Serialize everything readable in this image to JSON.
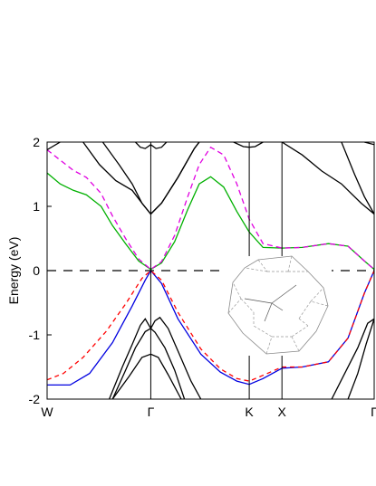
{
  "chart_data": {
    "type": "line",
    "title": "",
    "ylabel": "Energy (eV)",
    "xlabel": "",
    "ylim": [
      -2,
      2
    ],
    "xlim": [
      0,
      1
    ],
    "grid": false,
    "legend": "none",
    "y_ticks": [
      {
        "value": 2,
        "label": "2"
      },
      {
        "value": 1,
        "label": "1"
      },
      {
        "value": 0,
        "label": "0"
      },
      {
        "value": -1,
        "label": "-1"
      },
      {
        "value": -2,
        "label": "-2"
      }
    ],
    "k_points": [
      {
        "label": "W",
        "x": 0.0
      },
      {
        "label": "Γ",
        "x": 0.317
      },
      {
        "label": "K",
        "x": 0.618
      },
      {
        "label": "X",
        "x": 0.718
      },
      {
        "label": "Γ",
        "x": 1.0
      }
    ],
    "fermi_level": 0,
    "series": [
      {
        "color": "#00b000",
        "dash": "none",
        "points": [
          [
            0.0,
            1.52
          ],
          [
            0.04,
            1.35
          ],
          [
            0.08,
            1.25
          ],
          [
            0.12,
            1.18
          ],
          [
            0.165,
            1.0
          ],
          [
            0.2,
            0.7
          ],
          [
            0.24,
            0.42
          ],
          [
            0.28,
            0.15
          ],
          [
            0.317,
            0.02
          ],
          [
            0.35,
            0.12
          ],
          [
            0.39,
            0.45
          ],
          [
            0.43,
            0.95
          ],
          [
            0.465,
            1.35
          ],
          [
            0.5,
            1.46
          ],
          [
            0.54,
            1.3
          ],
          [
            0.58,
            0.92
          ],
          [
            0.618,
            0.6
          ],
          [
            0.66,
            0.36
          ],
          [
            0.718,
            0.35
          ],
          [
            0.78,
            0.36
          ],
          [
            0.86,
            0.42
          ],
          [
            0.92,
            0.38
          ],
          [
            0.97,
            0.15
          ],
          [
            1.0,
            0.02
          ]
        ]
      },
      {
        "color": "#e000e0",
        "dash": "6,4",
        "points": [
          [
            0.0,
            1.88
          ],
          [
            0.04,
            1.72
          ],
          [
            0.08,
            1.56
          ],
          [
            0.12,
            1.45
          ],
          [
            0.165,
            1.2
          ],
          [
            0.2,
            0.85
          ],
          [
            0.24,
            0.5
          ],
          [
            0.28,
            0.18
          ],
          [
            0.317,
            0.02
          ],
          [
            0.35,
            0.14
          ],
          [
            0.39,
            0.55
          ],
          [
            0.43,
            1.15
          ],
          [
            0.465,
            1.65
          ],
          [
            0.5,
            1.92
          ],
          [
            0.54,
            1.8
          ],
          [
            0.58,
            1.35
          ],
          [
            0.618,
            0.8
          ],
          [
            0.66,
            0.42
          ],
          [
            0.718,
            0.35
          ],
          [
            0.78,
            0.36
          ],
          [
            0.86,
            0.42
          ],
          [
            0.92,
            0.38
          ],
          [
            0.97,
            0.15
          ],
          [
            1.0,
            0.02
          ]
        ]
      },
      {
        "color": "#0000e0",
        "dash": "none",
        "points": [
          [
            0.0,
            -1.78
          ],
          [
            0.07,
            -1.78
          ],
          [
            0.13,
            -1.6
          ],
          [
            0.2,
            -1.12
          ],
          [
            0.26,
            -0.55
          ],
          [
            0.3,
            -0.15
          ],
          [
            0.317,
            0.0
          ],
          [
            0.35,
            -0.2
          ],
          [
            0.4,
            -0.75
          ],
          [
            0.47,
            -1.3
          ],
          [
            0.53,
            -1.58
          ],
          [
            0.58,
            -1.72
          ],
          [
            0.618,
            -1.77
          ],
          [
            0.66,
            -1.68
          ],
          [
            0.718,
            -1.52
          ],
          [
            0.78,
            -1.5
          ],
          [
            0.86,
            -1.42
          ],
          [
            0.92,
            -1.05
          ],
          [
            0.97,
            -0.35
          ],
          [
            1.0,
            0.0
          ]
        ]
      },
      {
        "color": "#ff0000",
        "dash": "5,4",
        "points": [
          [
            0.0,
            -1.7
          ],
          [
            0.05,
            -1.6
          ],
          [
            0.11,
            -1.35
          ],
          [
            0.18,
            -0.95
          ],
          [
            0.24,
            -0.52
          ],
          [
            0.29,
            -0.12
          ],
          [
            0.317,
            0.0
          ],
          [
            0.35,
            -0.15
          ],
          [
            0.4,
            -0.65
          ],
          [
            0.47,
            -1.22
          ],
          [
            0.53,
            -1.53
          ],
          [
            0.58,
            -1.68
          ],
          [
            0.618,
            -1.72
          ],
          [
            0.66,
            -1.63
          ],
          [
            0.718,
            -1.5
          ],
          [
            0.78,
            -1.5
          ],
          [
            0.86,
            -1.42
          ],
          [
            0.92,
            -1.05
          ],
          [
            0.97,
            -0.35
          ],
          [
            1.0,
            0.0
          ]
        ]
      },
      {
        "color": "#000000",
        "dash": "none",
        "points": [
          [
            0.0,
            1.88
          ],
          [
            0.04,
            2.0
          ]
        ]
      },
      {
        "color": "#000000",
        "dash": "none",
        "points": [
          [
            0.11,
            2.0
          ],
          [
            0.16,
            1.65
          ],
          [
            0.21,
            1.4
          ],
          [
            0.26,
            1.25
          ],
          [
            0.29,
            1.05
          ],
          [
            0.317,
            0.88
          ],
          [
            0.35,
            1.05
          ],
          [
            0.4,
            1.45
          ],
          [
            0.45,
            1.9
          ],
          [
            0.465,
            2.0
          ]
        ]
      },
      {
        "color": "#000000",
        "dash": "none",
        "points": [
          [
            0.17,
            2.0
          ],
          [
            0.22,
            1.65
          ],
          [
            0.26,
            1.35
          ],
          [
            0.29,
            1.05
          ],
          [
            0.317,
            0.88
          ],
          [
            0.35,
            1.05
          ],
          [
            0.4,
            1.45
          ],
          [
            0.45,
            1.9
          ],
          [
            0.465,
            2.0
          ]
        ]
      },
      {
        "color": "#000000",
        "dash": "none",
        "points": [
          [
            0.27,
            2.0
          ],
          [
            0.285,
            1.92
          ],
          [
            0.3,
            1.9
          ],
          [
            0.317,
            1.96
          ],
          [
            0.333,
            1.9
          ],
          [
            0.35,
            1.92
          ],
          [
            0.365,
            2.0
          ]
        ]
      },
      {
        "color": "#000000",
        "dash": "none",
        "points": [
          [
            0.57,
            2.0
          ],
          [
            0.6,
            1.93
          ],
          [
            0.618,
            1.92
          ],
          [
            0.636,
            1.93
          ],
          [
            0.66,
            2.0
          ]
        ]
      },
      {
        "color": "#000000",
        "dash": "none",
        "points": [
          [
            0.718,
            2.0
          ],
          [
            0.78,
            1.8
          ],
          [
            0.84,
            1.55
          ],
          [
            0.9,
            1.35
          ],
          [
            0.96,
            1.05
          ],
          [
            1.0,
            0.88
          ]
        ]
      },
      {
        "color": "#000000",
        "dash": "none",
        "points": [
          [
            0.9,
            2.0
          ],
          [
            0.94,
            1.5
          ],
          [
            0.97,
            1.15
          ],
          [
            1.0,
            0.88
          ]
        ]
      },
      {
        "color": "#000000",
        "dash": "none",
        "points": [
          [
            0.97,
            2.0
          ],
          [
            1.0,
            1.96
          ]
        ]
      },
      {
        "color": "#000000",
        "dash": "none",
        "points": [
          [
            0.19,
            -2.0
          ],
          [
            0.23,
            -1.5
          ],
          [
            0.26,
            -1.15
          ],
          [
            0.285,
            -0.85
          ],
          [
            0.3,
            -0.75
          ],
          [
            0.317,
            -0.9
          ],
          [
            0.33,
            -0.78
          ],
          [
            0.345,
            -0.73
          ],
          [
            0.37,
            -0.9
          ],
          [
            0.4,
            -1.25
          ],
          [
            0.44,
            -1.72
          ],
          [
            0.47,
            -2.0
          ]
        ]
      },
      {
        "color": "#000000",
        "dash": "none",
        "points": [
          [
            0.2,
            -2.0
          ],
          [
            0.24,
            -1.55
          ],
          [
            0.27,
            -1.2
          ],
          [
            0.3,
            -0.95
          ],
          [
            0.317,
            -0.9
          ],
          [
            0.33,
            -0.96
          ],
          [
            0.36,
            -1.2
          ],
          [
            0.39,
            -1.55
          ],
          [
            0.42,
            -2.0
          ]
        ]
      },
      {
        "color": "#000000",
        "dash": "none",
        "points": [
          [
            0.2,
            -2.0
          ],
          [
            0.25,
            -1.65
          ],
          [
            0.29,
            -1.35
          ],
          [
            0.317,
            -1.3
          ],
          [
            0.34,
            -1.35
          ],
          [
            0.37,
            -1.62
          ],
          [
            0.41,
            -2.0
          ]
        ]
      },
      {
        "color": "#000000",
        "dash": "none",
        "points": [
          [
            0.87,
            -2.0
          ],
          [
            0.91,
            -1.6
          ],
          [
            0.95,
            -1.2
          ],
          [
            0.98,
            -0.82
          ],
          [
            1.0,
            -0.75
          ]
        ]
      },
      {
        "color": "#000000",
        "dash": "none",
        "points": [
          [
            0.92,
            -2.0
          ],
          [
            0.95,
            -1.6
          ],
          [
            0.975,
            -1.15
          ],
          [
            1.0,
            -0.75
          ]
        ]
      }
    ]
  }
}
